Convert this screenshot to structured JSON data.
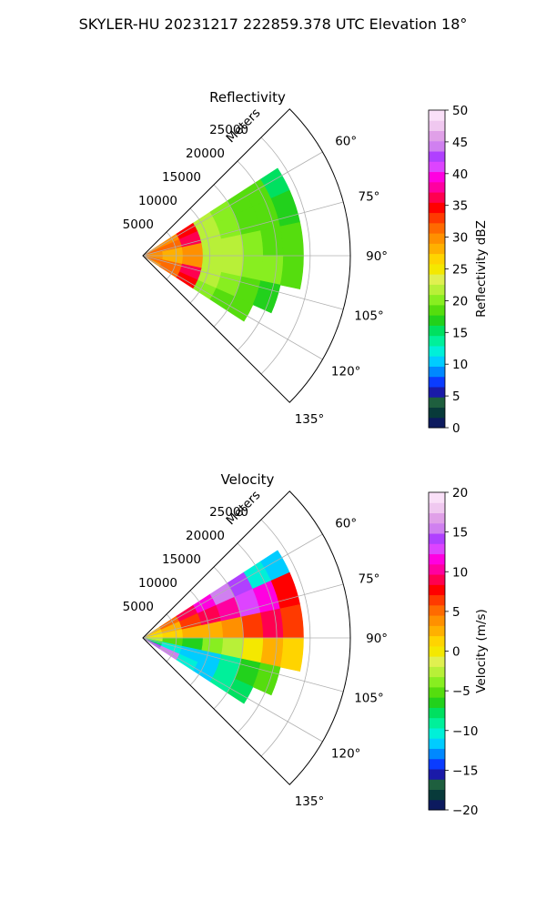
{
  "figure": {
    "title": "SKYLER-HU  20231217  222859.378 UTC Elevation 18°"
  },
  "chart_data": [
    {
      "type": "heatmap",
      "subtype": "polar-sector",
      "title": "Reflectivity",
      "radial_label": "Meters",
      "radial_ticks": [
        "5000",
        "10000",
        "15000",
        "20000",
        "25000"
      ],
      "radial_tick_values": [
        5000,
        10000,
        15000,
        20000,
        25000
      ],
      "rlim": [
        0,
        31000
      ],
      "azimuth_range_deg": [
        45,
        135
      ],
      "azimuth_ticks": [
        "60°",
        "75°",
        "90°",
        "105°",
        "120°",
        "135°"
      ],
      "azimuth_tick_values": [
        60,
        75,
        90,
        105,
        120,
        135
      ],
      "grid": true,
      "colorbar": {
        "label": "Reflectivity dBZ",
        "min": 0,
        "max": 50,
        "ticks": [
          "0",
          "5",
          "10",
          "15",
          "20",
          "25",
          "30",
          "35",
          "40",
          "45",
          "50"
        ],
        "tick_values": [
          0,
          5,
          10,
          15,
          20,
          25,
          30,
          35,
          40,
          45,
          50
        ],
        "colors": [
          "#0c1a5e",
          "#083a3a",
          "#1e5f3e",
          "#1a1aa8",
          "#0a3cff",
          "#0088ff",
          "#00ccff",
          "#00f0d8",
          "#00f09a",
          "#00e060",
          "#22d11c",
          "#55dd0e",
          "#88ee20",
          "#b8f038",
          "#e0f050",
          "#f4e800",
          "#ffd400",
          "#ffb000",
          "#ff9000",
          "#ff6a00",
          "#ff3a00",
          "#ff0000",
          "#ff0050",
          "#ff00a0",
          "#ff00e0",
          "#dd44ff",
          "#b040ff",
          "#d080f0",
          "#e0a0e8",
          "#f0c8f0",
          "#fae0f8"
        ]
      },
      "field_sample": {
        "azimuth_edges_deg": [
          57,
          66,
          78,
          90,
          102,
          114,
          123
        ],
        "range_edges_m": [
          0,
          3000,
          6000,
          9000,
          12000,
          15000,
          18000,
          21000,
          24000
        ],
        "values": [
          [
            30,
            30,
            34,
            21,
            20,
            19,
            18,
            16
          ],
          [
            31,
            32,
            36,
            22,
            20,
            19,
            18,
            17
          ],
          [
            30,
            29,
            30,
            21,
            21,
            20,
            19,
            18
          ],
          [
            30,
            29,
            30,
            22,
            21,
            20,
            20,
            19
          ],
          [
            31,
            32,
            36,
            21,
            20,
            19,
            17,
            null
          ],
          [
            30,
            31,
            34,
            20,
            19,
            18,
            null,
            null
          ]
        ]
      }
    },
    {
      "type": "heatmap",
      "subtype": "polar-sector",
      "title": "Velocity",
      "radial_label": "Meters",
      "radial_ticks": [
        "5000",
        "10000",
        "15000",
        "20000",
        "25000"
      ],
      "radial_tick_values": [
        5000,
        10000,
        15000,
        20000,
        25000
      ],
      "rlim": [
        0,
        31000
      ],
      "azimuth_range_deg": [
        45,
        135
      ],
      "azimuth_ticks": [
        "60°",
        "75°",
        "90°",
        "105°",
        "120°",
        "135°"
      ],
      "azimuth_tick_values": [
        60,
        75,
        90,
        105,
        120,
        135
      ],
      "grid": true,
      "colorbar": {
        "label": "Velocity (m/s)",
        "min": -20,
        "max": 20,
        "ticks": [
          "−20",
          "−15",
          "−10",
          "−5",
          "0",
          "5",
          "10",
          "15",
          "20"
        ],
        "tick_values": [
          -20,
          -15,
          -10,
          -5,
          0,
          5,
          10,
          15,
          20
        ],
        "colors": [
          "#0c1a5e",
          "#083a3a",
          "#1e5f3e",
          "#1a1aa8",
          "#0a3cff",
          "#0088ff",
          "#00ccff",
          "#00f0d8",
          "#00f09a",
          "#00e060",
          "#22d11c",
          "#55dd0e",
          "#88ee20",
          "#b8f038",
          "#e0f050",
          "#f4e800",
          "#ffd400",
          "#ffb000",
          "#ff9000",
          "#ff6a00",
          "#ff3a00",
          "#ff0000",
          "#ff0050",
          "#ff00a0",
          "#ff00e0",
          "#dd44ff",
          "#b040ff",
          "#d080f0",
          "#e0a0e8",
          "#f0c8f0",
          "#fae0f8"
        ]
      },
      "field_sample": {
        "azimuth_edges_deg": [
          57,
          66,
          78,
          90,
          102,
          114,
          123
        ],
        "range_edges_m": [
          0,
          3000,
          6000,
          9000,
          12000,
          15000,
          18000,
          21000,
          24000
        ],
        "values": [
          [
            2,
            5,
            9,
            12,
            16,
            14,
            -10,
            -12
          ],
          [
            1,
            3,
            6,
            9,
            10,
            13,
            12,
            8
          ],
          [
            0,
            1,
            2,
            3,
            4,
            6,
            9,
            6
          ],
          [
            -2,
            -5,
            -6,
            -4,
            -2,
            0,
            2,
            1
          ],
          [
            -8,
            -10,
            -12,
            -11,
            -9,
            -7,
            -5,
            null
          ],
          [
            14,
            16,
            -10,
            -11,
            -9,
            -8,
            null,
            null
          ]
        ]
      }
    }
  ]
}
